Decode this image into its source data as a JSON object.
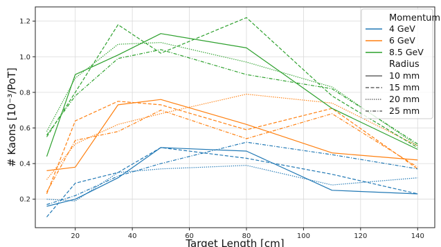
{
  "chart_data": {
    "type": "line",
    "xlabel": "Target Length [cm]",
    "ylabel": "# Kaons [10⁻³/PoT]",
    "xlim": [
      6,
      146
    ],
    "ylim": [
      0.04,
      1.28
    ],
    "xticks": [
      20,
      40,
      60,
      80,
      100,
      120,
      140
    ],
    "yticks": [
      0.2,
      0.4,
      0.6,
      0.8,
      1.0,
      1.2
    ],
    "xtick_labels": [
      "20",
      "40",
      "60",
      "80",
      "100",
      "120",
      "140"
    ],
    "ytick_labels": [
      "0.2",
      "0.4",
      "0.6",
      "0.8",
      "1.0",
      "1.2"
    ],
    "grid": true,
    "legend_position": "top-right",
    "legend": {
      "momentum_title": "Momentum",
      "radius_title": "Radius",
      "momentum": [
        {
          "label": "4 GeV",
          "color": "#1f77b4"
        },
        {
          "label": "6 GeV",
          "color": "#ff7f0e"
        },
        {
          "label": "8.5 GeV",
          "color": "#2ca02c"
        }
      ],
      "radius": [
        {
          "label": "10 mm",
          "dash": "solid"
        },
        {
          "label": "15 mm",
          "dash": "dashed"
        },
        {
          "label": "20 mm",
          "dash": "dotted"
        },
        {
          "label": "25 mm",
          "dash": "dashdot"
        }
      ]
    },
    "x": [
      10,
      20,
      35,
      50,
      80,
      110,
      140
    ],
    "series": [
      {
        "momentum": "4 GeV",
        "radius": "10 mm",
        "color": "#1f77b4",
        "dash": "solid",
        "values": [
          0.16,
          0.2,
          0.32,
          0.49,
          0.47,
          0.25,
          0.23
        ]
      },
      {
        "momentum": "4 GeV",
        "radius": "15 mm",
        "color": "#1f77b4",
        "dash": "dashed",
        "values": [
          0.1,
          0.29,
          0.35,
          0.49,
          0.43,
          0.34,
          0.23
        ]
      },
      {
        "momentum": "4 GeV",
        "radius": "20 mm",
        "color": "#1f77b4",
        "dash": "dotted",
        "values": [
          0.2,
          0.19,
          0.35,
          0.37,
          0.39,
          0.28,
          0.32
        ]
      },
      {
        "momentum": "4 GeV",
        "radius": "25 mm",
        "color": "#1f77b4",
        "dash": "dashdot",
        "values": [
          0.17,
          0.22,
          0.33,
          0.4,
          0.52,
          0.45,
          0.37
        ]
      },
      {
        "momentum": "6 GeV",
        "radius": "10 mm",
        "color": "#ff7f0e",
        "dash": "solid",
        "values": [
          0.36,
          0.38,
          0.73,
          0.76,
          0.62,
          0.46,
          0.42
        ]
      },
      {
        "momentum": "6 GeV",
        "radius": "15 mm",
        "color": "#ff7f0e",
        "dash": "dashed",
        "values": [
          0.23,
          0.64,
          0.75,
          0.73,
          0.59,
          0.71,
          0.37
        ]
      },
      {
        "momentum": "6 GeV",
        "radius": "20 mm",
        "color": "#ff7f0e",
        "dash": "dotted",
        "values": [
          0.31,
          0.51,
          0.62,
          0.68,
          0.79,
          0.74,
          0.5
        ]
      },
      {
        "momentum": "6 GeV",
        "radius": "25 mm",
        "color": "#ff7f0e",
        "dash": "dashdot",
        "values": [
          0.24,
          0.53,
          0.58,
          0.7,
          0.54,
          0.68,
          0.38
        ]
      },
      {
        "momentum": "8.5 GeV",
        "radius": "10 mm",
        "color": "#2ca02c",
        "dash": "solid",
        "values": [
          0.44,
          0.9,
          1.01,
          1.13,
          1.05,
          0.71,
          0.48
        ]
      },
      {
        "momentum": "8.5 GeV",
        "radius": "15 mm",
        "color": "#2ca02c",
        "dash": "dashed",
        "values": [
          0.55,
          0.8,
          1.18,
          1.02,
          1.22,
          0.78,
          0.49
        ]
      },
      {
        "momentum": "8.5 GeV",
        "radius": "20 mm",
        "color": "#2ca02c",
        "dash": "dotted",
        "values": [
          0.58,
          0.88,
          1.07,
          1.08,
          0.97,
          0.83,
          0.5
        ]
      },
      {
        "momentum": "8.5 GeV",
        "radius": "25 mm",
        "color": "#2ca02c",
        "dash": "dashdot",
        "values": [
          0.56,
          0.78,
          0.99,
          1.04,
          0.9,
          0.82,
          0.51
        ]
      }
    ]
  }
}
